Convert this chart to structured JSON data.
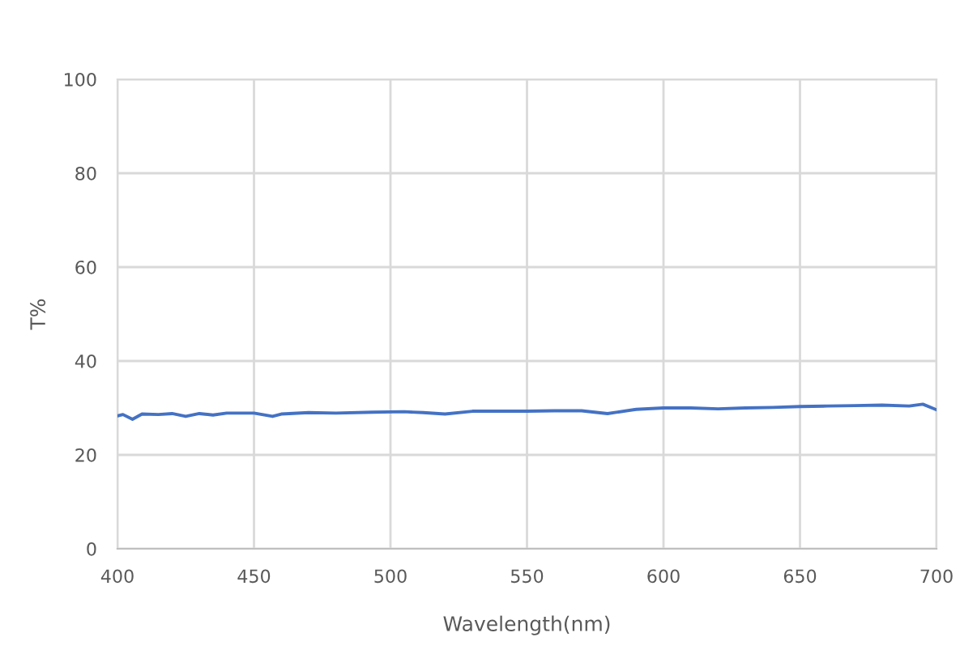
{
  "chart_data": {
    "type": "line",
    "xlabel": "Wavelength(nm)",
    "ylabel": "T%",
    "series": [
      {
        "color": "#4472c4",
        "x": [
          400,
          402,
          405.5,
          409,
          415,
          420,
          425,
          430,
          435,
          440,
          450,
          456.8,
          460,
          470,
          480,
          493.5,
          505,
          512,
          520,
          530,
          540,
          550,
          560,
          570,
          579.5,
          590,
          600,
          610,
          620,
          630,
          640,
          650,
          660,
          670,
          680,
          690,
          695,
          700
        ],
        "values": [
          28.3,
          28.6,
          27.6,
          28.7,
          28.6,
          28.8,
          28.2,
          28.8,
          28.5,
          28.9,
          28.9,
          28.2,
          28.7,
          29.0,
          28.9,
          29.1,
          29.2,
          29.0,
          28.7,
          29.3,
          29.3,
          29.3,
          29.4,
          29.4,
          28.8,
          29.7,
          30.0,
          30.0,
          29.8,
          30.0,
          30.1,
          30.3,
          30.4,
          30.5,
          30.6,
          30.4,
          30.8,
          29.6
        ]
      }
    ],
    "xlim": [
      400,
      700
    ],
    "xticks": [
      400,
      450,
      500,
      550,
      600,
      650,
      700
    ],
    "ylim": [
      0,
      100
    ],
    "yticks": [
      0,
      20,
      40,
      60,
      80,
      100
    ],
    "grid": true,
    "marker": "none",
    "line_style": "solid"
  }
}
